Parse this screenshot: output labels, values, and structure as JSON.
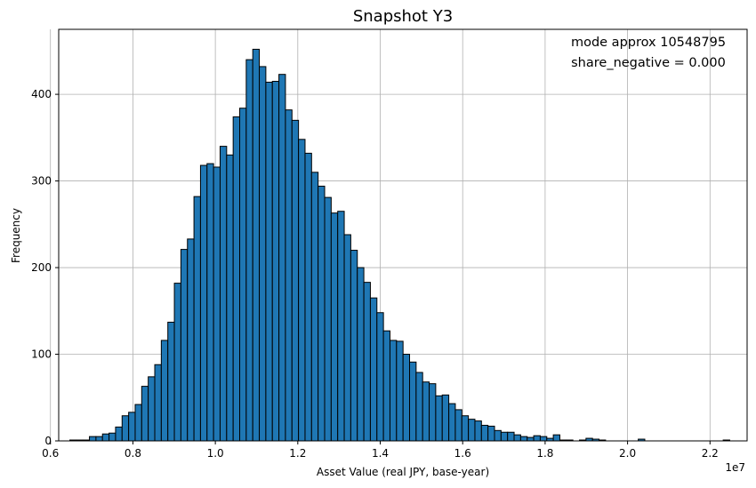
{
  "chart_data": {
    "type": "bar",
    "title": "Snapshot Y3",
    "xlabel": "Asset Value (real JPY, base-year)",
    "ylabel": "Frequency",
    "x_offset_label": "1e7",
    "xlim": [
      0.62,
      2.29
    ],
    "ylim": [
      0,
      475
    ],
    "x_ticks": [
      0.6,
      0.8,
      1.0,
      1.2,
      1.4,
      1.6,
      1.8,
      2.0,
      2.2
    ],
    "x_tick_labels": [
      "0.6",
      "0.8",
      "1.0",
      "1.2",
      "1.4",
      "1.6",
      "1.8",
      "2.0",
      "2.2"
    ],
    "y_ticks": [
      0,
      100,
      200,
      300,
      400
    ],
    "y_tick_labels": [
      "0",
      "100",
      "200",
      "300",
      "400"
    ],
    "grid": true,
    "bin_start": 0.647,
    "bin_width": 0.01585,
    "counts": [
      1,
      1,
      1,
      5,
      5,
      8,
      9,
      16,
      29,
      33,
      42,
      63,
      74,
      88,
      116,
      137,
      182,
      221,
      233,
      282,
      318,
      320,
      316,
      340,
      330,
      374,
      384,
      440,
      452,
      432,
      414,
      415,
      423,
      382,
      370,
      348,
      332,
      310,
      294,
      281,
      263,
      265,
      238,
      220,
      200,
      183,
      165,
      148,
      127,
      116,
      115,
      100,
      91,
      79,
      68,
      66,
      52,
      53,
      43,
      36,
      29,
      25,
      23,
      18,
      17,
      12,
      10,
      10,
      7,
      5,
      4,
      6,
      5,
      3,
      7,
      1,
      1,
      0,
      1,
      3,
      2,
      1,
      0,
      0,
      0,
      0,
      0,
      2,
      0,
      0,
      0,
      0,
      0,
      0,
      0,
      0,
      0,
      0,
      0,
      0,
      1
    ],
    "annotations": [
      "mode approx 10548795",
      "share_negative = 0.000"
    ],
    "colors": {
      "bar_fill": "#1f77b4",
      "bar_edge": "#000000",
      "grid": "#b0b0b0"
    }
  }
}
